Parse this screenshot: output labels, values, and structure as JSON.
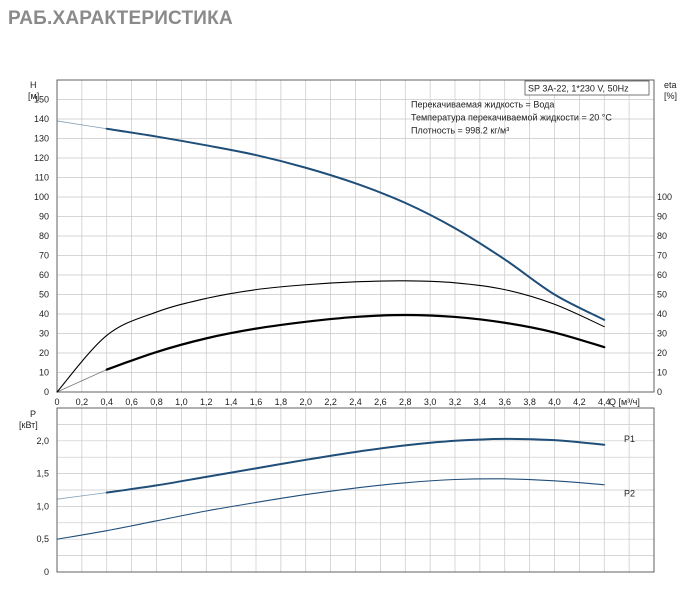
{
  "page": {
    "title": "РАБ.ХАРАКТЕРИСТИКА"
  },
  "model_label": "SP 3A-22, 1*230 V, 50Hz",
  "info_lines": [
    "Перекачиваемая жидкость = Вода",
    "Температура перекачиваемой жидкости = 20 °C",
    "Плотность = 998.2 кг/м³"
  ],
  "colors": {
    "curve_blue": "#1f4e79",
    "efficiency": "#000000",
    "grid": "#c8c8c8",
    "frame": "#555555"
  },
  "chart_data": [
    {
      "type": "line",
      "xlim": [
        0,
        4.8
      ],
      "ylim": [
        0,
        160
      ],
      "grid": true,
      "x_ticks": [
        "0",
        "0,2",
        "0,4",
        "0,6",
        "0,8",
        "1,0",
        "1,2",
        "1,4",
        "1,6",
        "1,8",
        "2,0",
        "2,2",
        "2,4",
        "2,6",
        "2,8",
        "3,0",
        "3,2",
        "3,4",
        "3,6",
        "3,8",
        "4,0",
        "4,2",
        "4,4"
      ],
      "x_tick_values": [
        0,
        0.2,
        0.4,
        0.6,
        0.8,
        1.0,
        1.2,
        1.4,
        1.6,
        1.8,
        2.0,
        2.2,
        2.4,
        2.6,
        2.8,
        3.0,
        3.2,
        3.4,
        3.6,
        3.8,
        4.0,
        4.2,
        4.4
      ],
      "xlabel": "Q [м³/ч]",
      "ylabel_left": "H\n[м]",
      "ylabel_right": "eta\n[%]",
      "y_ticks_left": [
        0,
        10,
        20,
        30,
        40,
        50,
        60,
        70,
        80,
        90,
        100,
        110,
        120,
        130,
        140,
        150
      ],
      "y_ticks_right": [
        0,
        10,
        20,
        30,
        40,
        50,
        60,
        70,
        80,
        90,
        100
      ],
      "series": [
        {
          "color": "#1f4e79",
          "x": [
            0,
            0.4,
            0.8,
            1.2,
            1.6,
            2.0,
            2.4,
            2.8,
            3.2,
            3.6,
            4.0,
            4.4
          ],
          "y": [
            139,
            135,
            131,
            126.5,
            121.5,
            115,
            107,
            97,
            84,
            68,
            50,
            37
          ],
          "faint_until": 0.4
        },
        {
          "color": "#000000",
          "x": [
            0,
            0.4,
            0.8,
            1.2,
            1.6,
            2.0,
            2.4,
            2.8,
            3.2,
            3.6,
            4.0,
            4.4
          ],
          "y": [
            0,
            29,
            41,
            48,
            52.5,
            55,
            56.5,
            57,
            56,
            52.5,
            45,
            33.5
          ]
        },
        {
          "color": "#000000",
          "x": [
            0,
            0.4,
            0.8,
            1.2,
            1.6,
            2.0,
            2.4,
            2.8,
            3.2,
            3.6,
            4.0,
            4.4
          ],
          "y": [
            0,
            11.5,
            20.5,
            27.5,
            32.5,
            36,
            38.5,
            39.5,
            38.5,
            35.5,
            30.5,
            23
          ],
          "faint_until": 0.4
        }
      ]
    },
    {
      "type": "line",
      "xlim": [
        0,
        4.8
      ],
      "ylim": [
        0,
        2.5
      ],
      "grid": true,
      "ylabel": "P\n[кВт]",
      "y_ticks": [
        "0",
        "0,5",
        "1,0",
        "1,5",
        "2,0"
      ],
      "y_tick_values": [
        0,
        0.5,
        1.0,
        1.5,
        2.0
      ],
      "series": [
        {
          "name": "P1",
          "color": "#1f4e79",
          "x": [
            0,
            0.4,
            0.8,
            1.2,
            1.6,
            2.0,
            2.4,
            2.8,
            3.2,
            3.6,
            4.0,
            4.4
          ],
          "y": [
            1.11,
            1.21,
            1.32,
            1.45,
            1.58,
            1.71,
            1.83,
            1.93,
            2.0,
            2.03,
            2.01,
            1.94
          ],
          "faint_until": 0.4
        },
        {
          "name": "P2",
          "color": "#1f4e79",
          "x": [
            0,
            0.4,
            0.8,
            1.2,
            1.6,
            2.0,
            2.4,
            2.8,
            3.2,
            3.6,
            4.0,
            4.4
          ],
          "y": [
            0.5,
            0.63,
            0.78,
            0.93,
            1.06,
            1.18,
            1.28,
            1.36,
            1.41,
            1.42,
            1.39,
            1.33
          ]
        }
      ]
    }
  ]
}
